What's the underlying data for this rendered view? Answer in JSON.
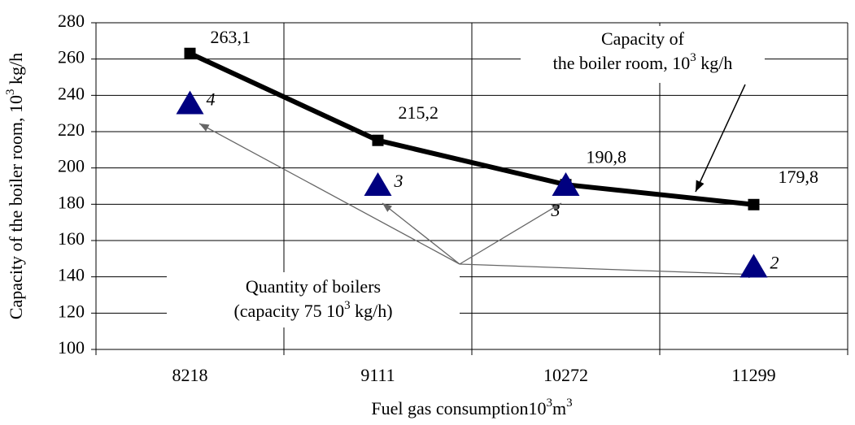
{
  "chart_data": {
    "type": "line",
    "categories": [
      "8218",
      "9111",
      "10272",
      "11299"
    ],
    "series": [
      {
        "color": "#000000",
        "values": [
          263.1,
          215.2,
          190.8,
          179.8
        ],
        "value_labels": [
          "263,1",
          "215,2",
          "190,8",
          "179,8"
        ]
      },
      {
        "color": "#000080",
        "axis": "y2",
        "values": [
          4,
          3,
          3,
          2
        ]
      }
    ],
    "ylim": [
      100,
      280
    ],
    "yticks": [
      100,
      120,
      140,
      160,
      180,
      200,
      220,
      240,
      260,
      280
    ],
    "y2lim": [
      1,
      5
    ],
    "grid": true,
    "ylabel": [
      "Capacity of the boiler room, 10",
      "3",
      " kg/h"
    ],
    "xlabel": [
      "Fuel gas consumption10",
      "3",
      "m",
      "3"
    ],
    "annotations": [
      {
        "lines": [
          [
            "Capacity of"
          ],
          [
            "the boiler room, 10",
            "3",
            " kg/h"
          ]
        ]
      },
      {
        "lines": [
          [
            "Quantity of boilers"
          ],
          [
            "(capacity 75 10",
            "3",
            " kg/h)"
          ]
        ]
      }
    ]
  }
}
